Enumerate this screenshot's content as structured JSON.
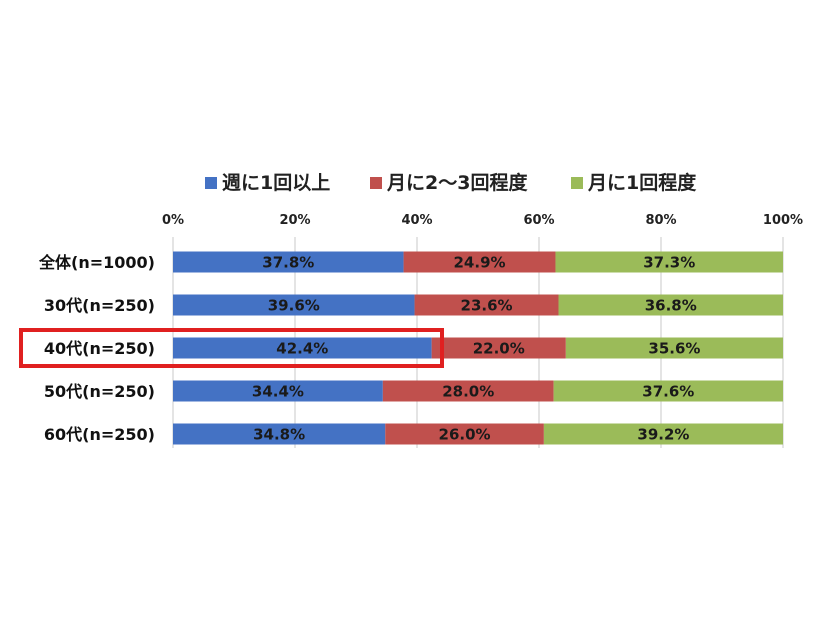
{
  "chart_data": {
    "type": "bar",
    "orientation": "horizontal",
    "stacked": true,
    "categories": [
      "全体(n=1000)",
      "30代(n=250)",
      "40代(n=250)",
      "50代(n=250)",
      "60代(n=250)"
    ],
    "series": [
      {
        "name": "週に1回以上",
        "values": [
          37.8,
          39.6,
          42.4,
          34.4,
          34.8
        ],
        "color": "#4472C4"
      },
      {
        "name": "月に2～3回程度",
        "values": [
          24.9,
          23.6,
          22.0,
          28.0,
          26.0
        ],
        "color": "#C0504D"
      },
      {
        "name": "月に1回程度",
        "values": [
          37.3,
          36.8,
          35.6,
          37.6,
          39.2
        ],
        "color": "#9BBB59"
      }
    ],
    "value_labels": [
      [
        "37.8%",
        "24.9%",
        "37.3%"
      ],
      [
        "39.6%",
        "23.6%",
        "36.8%"
      ],
      [
        "42.4%",
        "22.0%",
        "35.6%"
      ],
      [
        "34.4%",
        "28.0%",
        "37.6%"
      ],
      [
        "34.8%",
        "26.0%",
        "39.2%"
      ]
    ],
    "x_ticks": [
      "0%",
      "20%",
      "40%",
      "60%",
      "80%",
      "100%"
    ],
    "xlim": [
      0,
      100
    ],
    "legend_position": "top",
    "highlighted_category": "40代(n=250)",
    "highlight_color": "#E02020",
    "grid": true
  }
}
